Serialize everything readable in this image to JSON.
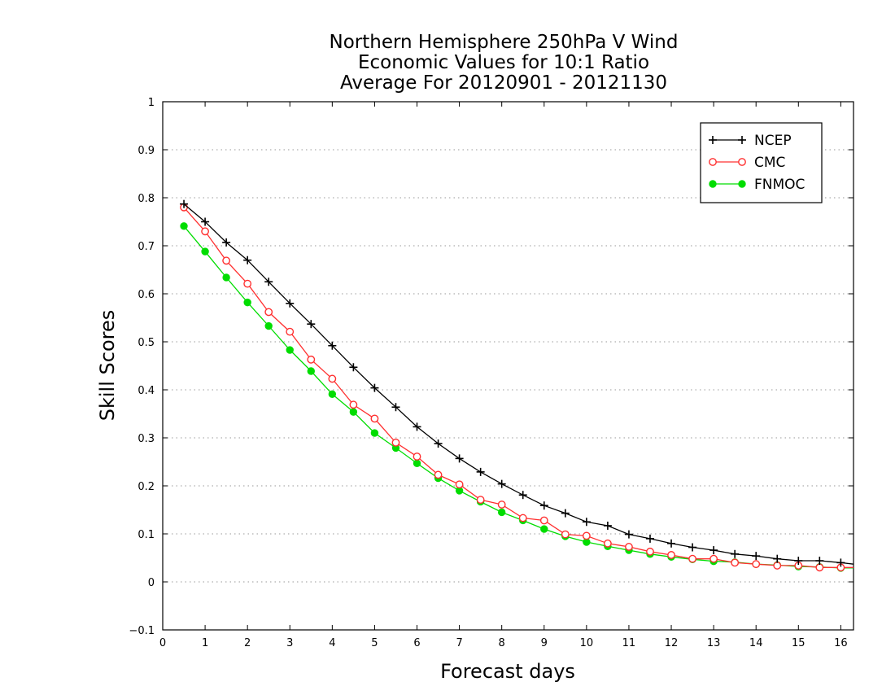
{
  "chart_data": {
    "type": "line",
    "title": [
      "Northern Hemisphere 250hPa V Wind",
      "Economic Values for 10:1 Ratio",
      "Average For 20120901 - 20121130"
    ],
    "xlabel": "Forecast days",
    "ylabel": "Skill Scores",
    "xlim": [
      0,
      16.3
    ],
    "ylim": [
      -0.1,
      1
    ],
    "xticks": [
      0,
      1,
      2,
      3,
      4,
      5,
      6,
      7,
      8,
      9,
      10,
      11,
      12,
      13,
      14,
      15,
      16
    ],
    "yticks": [
      -0.1,
      0,
      0.1,
      0.2,
      0.3,
      0.4,
      0.5,
      0.6,
      0.7,
      0.8,
      0.9,
      1
    ],
    "ytick_labels": [
      "−0.1",
      "0",
      "0.1",
      "0.2",
      "0.3",
      "0.4",
      "0.5",
      "0.6",
      "0.7",
      "0.8",
      "0.9",
      "1"
    ],
    "grid": "horizontal dotted",
    "legend_position": "top-right",
    "x": [
      0.5,
      1,
      1.5,
      2,
      2.5,
      3,
      3.5,
      4,
      4.5,
      5,
      5.5,
      6,
      6.5,
      7,
      7.5,
      8,
      8.5,
      9,
      9.5,
      10,
      10.5,
      11,
      11.5,
      12,
      12.5,
      13,
      13.5,
      14,
      14.5,
      15,
      15.5,
      16,
      16.3
    ],
    "series": [
      {
        "name": "NCEP",
        "color": "#000000",
        "marker": "plus",
        "values": [
          0.787,
          0.75,
          0.707,
          0.67,
          0.625,
          0.58,
          0.537,
          0.492,
          0.447,
          0.404,
          0.364,
          0.323,
          0.288,
          0.257,
          0.229,
          0.204,
          0.181,
          0.159,
          0.143,
          0.125,
          0.117,
          0.099,
          0.09,
          0.08,
          0.072,
          0.066,
          0.058,
          0.054,
          0.048,
          0.044,
          0.044,
          0.04,
          0.037
        ]
      },
      {
        "name": "CMC",
        "color": "#ff3030",
        "marker": "open-circle",
        "values": [
          0.78,
          0.73,
          0.669,
          0.621,
          0.562,
          0.521,
          0.463,
          0.423,
          0.369,
          0.34,
          0.29,
          0.261,
          0.223,
          0.203,
          0.171,
          0.161,
          0.133,
          0.128,
          0.099,
          0.096,
          0.08,
          0.073,
          0.063,
          0.056,
          0.048,
          0.048,
          0.04,
          0.037,
          0.034,
          0.034,
          0.03,
          0.03,
          0.03
        ]
      },
      {
        "name": "FNMOC",
        "color": "#00dd00",
        "marker": "filled-circle",
        "values": [
          0.741,
          0.688,
          0.634,
          0.582,
          0.533,
          0.483,
          0.439,
          0.391,
          0.354,
          0.31,
          0.279,
          0.247,
          0.216,
          0.19,
          0.167,
          0.145,
          0.128,
          0.11,
          0.095,
          0.083,
          0.074,
          0.066,
          0.058,
          0.052,
          0.047,
          0.043,
          0.041,
          0.037,
          0.035,
          0.032,
          0.031,
          0.029,
          0.029
        ]
      }
    ]
  }
}
